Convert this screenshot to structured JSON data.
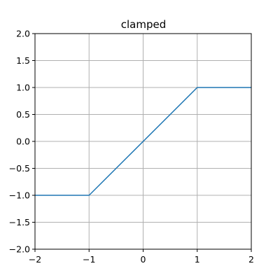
{
  "chart_data": {
    "type": "line",
    "title": "clamped",
    "xlabel": "",
    "ylabel": "",
    "xlim": [
      -2,
      2
    ],
    "ylim": [
      -2,
      2
    ],
    "grid": true,
    "legend": "none",
    "x_ticks": [
      -2,
      -1,
      0,
      1,
      2
    ],
    "x_tick_labels": [
      "−2",
      "−1",
      "0",
      "1",
      "2"
    ],
    "y_ticks": [
      -2.0,
      -1.5,
      -1.0,
      -0.5,
      0.0,
      0.5,
      1.0,
      1.5,
      2.0
    ],
    "y_tick_labels": [
      "−2.0",
      "−1.5",
      "−1.0",
      "−0.5",
      "0.0",
      "0.5",
      "1.0",
      "1.5",
      "2.0"
    ],
    "series": [
      {
        "x": [
          -2,
          -1,
          1,
          2
        ],
        "y": [
          -1,
          -1,
          1,
          1
        ],
        "color": "#1f77b4"
      }
    ]
  }
}
